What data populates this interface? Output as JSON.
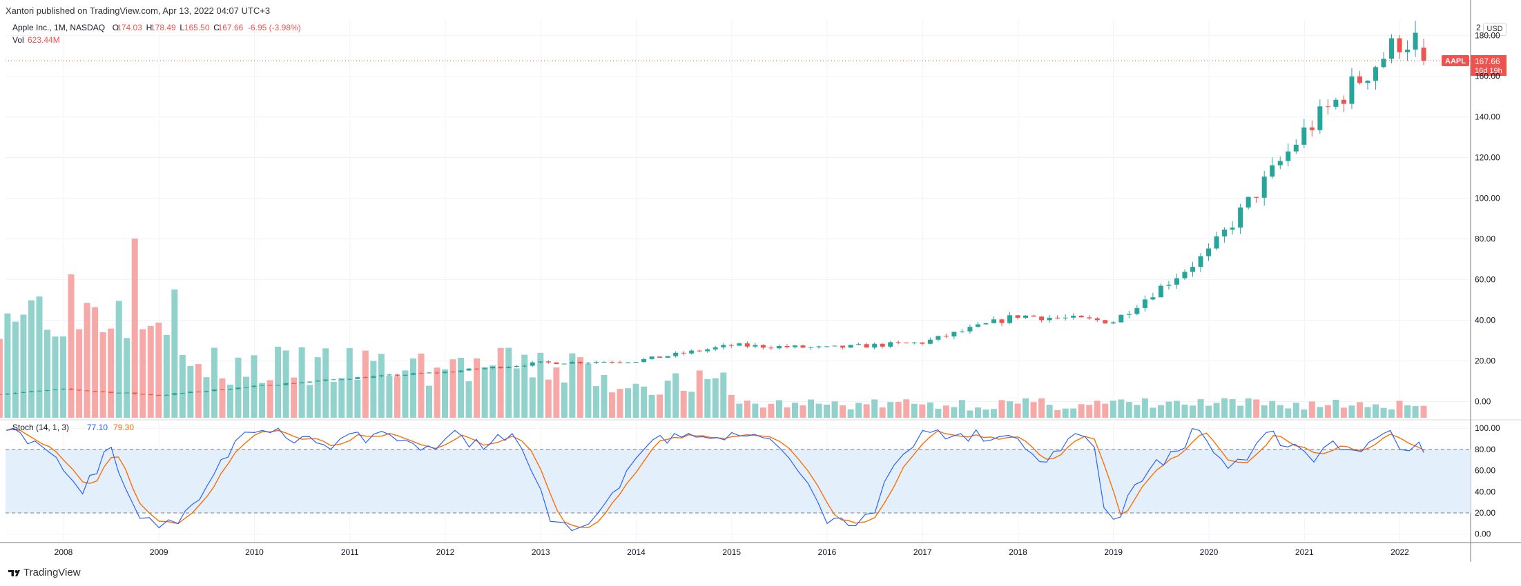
{
  "header": {
    "published": "Xantori published on TradingView.com, Apr 13, 2022 04:07 UTC+3"
  },
  "legend": {
    "symbol": "Apple Inc., 1M, NASDAQ",
    "open_label": "O",
    "open": "174.03",
    "high_label": "H",
    "high": "178.49",
    "low_label": "L",
    "low": "165.50",
    "close_label": "C",
    "close": "167.66",
    "change": "-6.95 (-3.98%)",
    "vol_label": "Vol",
    "vol": "623.44M",
    "stoch_label": "Stoch (14, 1, 3)",
    "stoch_k": "77.10",
    "stoch_d": "79.30"
  },
  "price_axis": {
    "top_label": "2",
    "currency": "USD",
    "ticks": [
      "180.00",
      "160.00",
      "140.00",
      "120.00",
      "100.00",
      "80.00",
      "60.00",
      "40.00",
      "20.00",
      "0.00"
    ]
  },
  "stoch_axis": {
    "ticks": [
      "100.00",
      "80.00",
      "60.00",
      "40.00",
      "20.00",
      "0.00"
    ]
  },
  "last_price": {
    "symbol": "AAPL",
    "price": "167.66",
    "countdown": "16d 19h"
  },
  "time_axis": {
    "labels": [
      "2008",
      "2009",
      "2010",
      "2011",
      "2012",
      "2013",
      "2014",
      "2015",
      "2016",
      "2017",
      "2018",
      "2019",
      "2020",
      "2021",
      "2022"
    ]
  },
  "brand": {
    "name": "TradingView"
  },
  "colors": {
    "up": "#26a69a",
    "down": "#ef5350",
    "up_vol": "#92d2cc",
    "down_vol": "#f7a9a7",
    "stoch_k": "#2962ff",
    "stoch_d": "#ff6d00",
    "band": "#e3f0fb"
  },
  "chart_data": [
    {
      "type": "candlestick",
      "title": "Apple Inc., 1M, NASDAQ",
      "interval": "monthly",
      "ylim": [
        -8,
        188
      ],
      "y_ticks": [
        0,
        20,
        40,
        60,
        80,
        100,
        120,
        140,
        160,
        180
      ],
      "x_labels": [
        "2008",
        "2009",
        "2010",
        "2011",
        "2012",
        "2013",
        "2014",
        "2015",
        "2016",
        "2017",
        "2018",
        "2019",
        "2020",
        "2021",
        "2022"
      ],
      "annual_closes": {
        "2007": 6.0,
        "2008": 3.1,
        "2009": 7.5,
        "2010": 11.5,
        "2011": 14.5,
        "2012": 19.0,
        "2013": 20.0,
        "2014": 27.6,
        "2015": 26.3,
        "2016": 29.0,
        "2017": 42.3,
        "2018": 39.4,
        "2019": 73.4,
        "2020": 132.7,
        "2021": 177.6
      },
      "last_bar": {
        "date": "2022-04",
        "open": 174.03,
        "high": 178.49,
        "low": 165.5,
        "close": 167.66
      },
      "last_price_line": 167.66
    },
    {
      "type": "bar",
      "title": "Vol",
      "series": "monthly volume",
      "notes": "peaks around 2008 (approx. 2x typical), declining to low levels after 2014",
      "last_value": "623.44M"
    },
    {
      "type": "line",
      "title": "Stoch (14, 1, 3)",
      "ylim": [
        -8,
        106
      ],
      "y_ticks": [
        0,
        20,
        40,
        60,
        80,
        100
      ],
      "bands": [
        20,
        80
      ],
      "series": [
        {
          "name": "%K",
          "last": 77.1,
          "keyframes_year_value": [
            [
              2007.4,
              98
            ],
            [
              2007.7,
              88
            ],
            [
              2008.0,
              60
            ],
            [
              2008.2,
              38
            ],
            [
              2008.5,
              82
            ],
            [
              2008.8,
              15
            ],
            [
              2009.0,
              6
            ],
            [
              2009.2,
              10
            ],
            [
              2009.5,
              45
            ],
            [
              2009.8,
              88
            ],
            [
              2010.0,
              96
            ],
            [
              2010.5,
              92
            ],
            [
              2010.8,
              80
            ],
            [
              2011.0,
              95
            ],
            [
              2011.5,
              88
            ],
            [
              2011.9,
              80
            ],
            [
              2012.1,
              98
            ],
            [
              2012.4,
              80
            ],
            [
              2012.7,
              95
            ],
            [
              2012.9,
              60
            ],
            [
              2013.1,
              12
            ],
            [
              2013.4,
              6
            ],
            [
              2013.6,
              20
            ],
            [
              2013.9,
              60
            ],
            [
              2014.1,
              82
            ],
            [
              2014.4,
              95
            ],
            [
              2014.7,
              92
            ],
            [
              2015.0,
              96
            ],
            [
              2015.4,
              90
            ],
            [
              2015.6,
              72
            ],
            [
              2015.8,
              48
            ],
            [
              2016.0,
              10
            ],
            [
              2016.3,
              8
            ],
            [
              2016.5,
              20
            ],
            [
              2016.7,
              65
            ],
            [
              2016.9,
              82
            ],
            [
              2017.0,
              98
            ],
            [
              2017.4,
              95
            ],
            [
              2017.8,
              92
            ],
            [
              2018.0,
              90
            ],
            [
              2018.3,
              68
            ],
            [
              2018.6,
              95
            ],
            [
              2018.8,
              82
            ],
            [
              2018.9,
              25
            ],
            [
              2019.0,
              14
            ],
            [
              2019.3,
              50
            ],
            [
              2019.6,
              78
            ],
            [
              2019.9,
              98
            ],
            [
              2020.2,
              62
            ],
            [
              2020.4,
              70
            ],
            [
              2020.6,
              96
            ],
            [
              2020.9,
              85
            ],
            [
              2021.1,
              68
            ],
            [
              2021.3,
              88
            ],
            [
              2021.6,
              78
            ],
            [
              2021.9,
              98
            ],
            [
              2022.0,
              80
            ],
            [
              2022.2,
              87
            ],
            [
              2022.25,
              77
            ]
          ]
        },
        {
          "name": "%D",
          "last": 79.3
        }
      ]
    }
  ]
}
